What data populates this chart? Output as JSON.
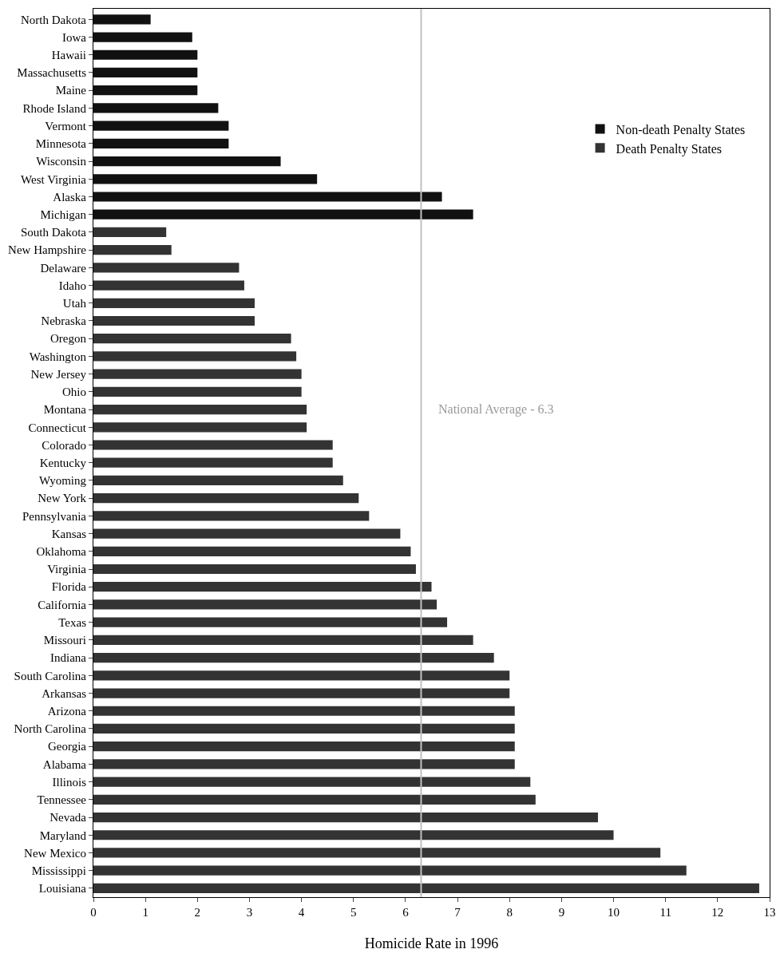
{
  "chart_data": {
    "type": "bar",
    "orientation": "horizontal",
    "xlabel": "Homicide Rate in 1996",
    "categories": [
      "North Dakota",
      "Iowa",
      "Hawaii",
      "Massachusetts",
      "Maine",
      "Rhode Island",
      "Vermont",
      "Minnesota",
      "Wisconsin",
      "West Virginia",
      "Alaska",
      "Michigan",
      "South Dakota",
      "New Hampshire",
      "Delaware",
      "Idaho",
      "Utah",
      "Nebraska",
      "Oregon",
      "Washington",
      "New Jersey",
      "Ohio",
      "Montana",
      "Connecticut",
      "Colorado",
      "Kentucky",
      "Wyoming",
      "New York",
      "Pennsylvania",
      "Kansas",
      "Oklahoma",
      "Virginia",
      "Florida",
      "California",
      "Texas",
      "Missouri",
      "Indiana",
      "South Carolina",
      "Arkansas",
      "Arizona",
      "North Carolina",
      "Georgia",
      "Alabama",
      "Illinois",
      "Tennessee",
      "Nevada",
      "Maryland",
      "New Mexico",
      "Mississippi",
      "Louisiana"
    ],
    "series": [
      {
        "name": "Non-death Penalty States",
        "color": "#111111",
        "values": [
          1.1,
          1.9,
          2.0,
          2.0,
          2.0,
          2.4,
          2.6,
          2.6,
          3.6,
          4.3,
          6.7,
          7.3,
          null,
          null,
          null,
          null,
          null,
          null,
          null,
          null,
          null,
          null,
          null,
          null,
          null,
          null,
          null,
          null,
          null,
          null,
          null,
          null,
          null,
          null,
          null,
          null,
          null,
          null,
          null,
          null,
          null,
          null,
          null,
          null,
          null,
          null,
          null,
          null,
          null,
          null
        ]
      },
      {
        "name": "Death Penalty States",
        "color": "#333333",
        "values": [
          null,
          null,
          null,
          null,
          null,
          null,
          null,
          null,
          null,
          null,
          null,
          null,
          1.4,
          1.5,
          2.8,
          2.9,
          3.1,
          3.1,
          3.8,
          3.9,
          4.0,
          4.0,
          4.1,
          4.1,
          4.6,
          4.6,
          4.8,
          5.1,
          5.3,
          5.9,
          6.1,
          6.2,
          6.5,
          6.6,
          6.8,
          7.3,
          7.7,
          8.0,
          8.0,
          8.1,
          8.1,
          8.1,
          8.1,
          8.4,
          8.5,
          9.7,
          10.0,
          10.9,
          11.4,
          12.8
        ]
      }
    ],
    "xlim": [
      0,
      13
    ],
    "xticks": [
      0,
      1,
      2,
      3,
      4,
      5,
      6,
      7,
      8,
      9,
      10,
      11,
      12,
      13
    ],
    "ref_lines": [
      {
        "axis": "x",
        "value": 6.3,
        "label": "National Average - 6.3",
        "color": "#c0c0c0"
      }
    ],
    "legend": "right"
  }
}
